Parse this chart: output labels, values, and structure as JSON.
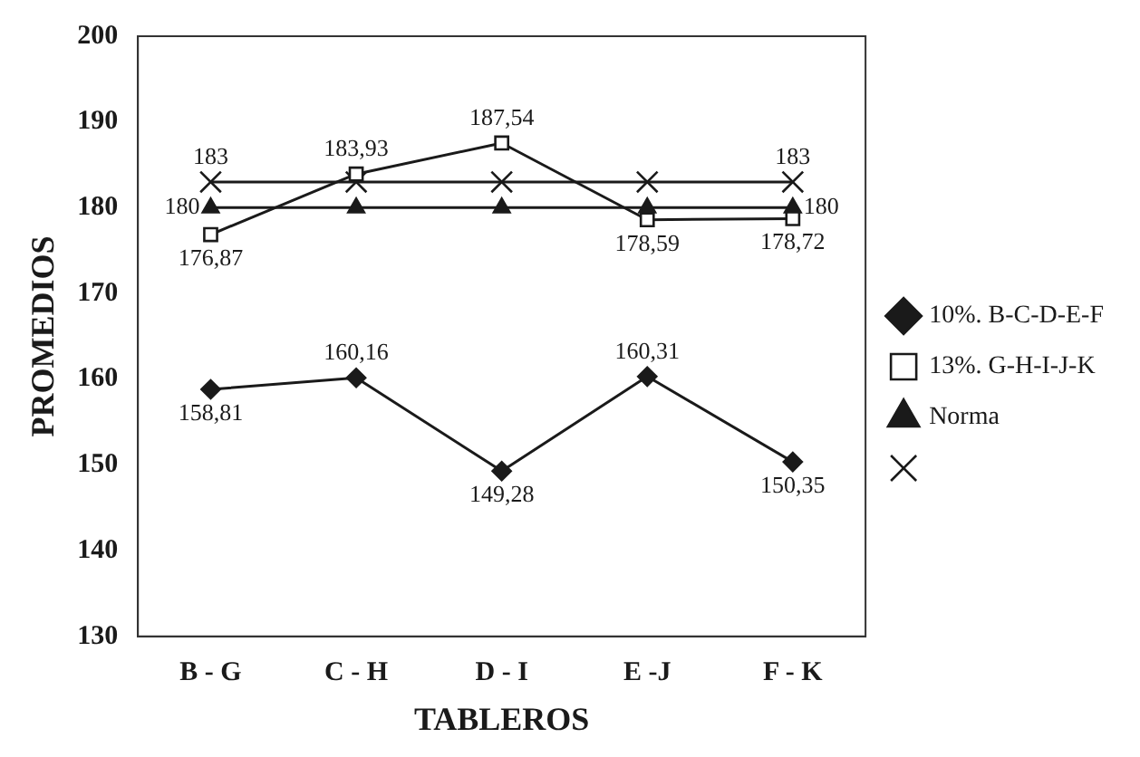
{
  "chart_data": {
    "type": "line",
    "xlabel": "TABLEROS",
    "ylabel": "PROMEDIOS",
    "categories": [
      "B - G",
      "C - H",
      "D - I",
      "E -J",
      "F - K"
    ],
    "ylim": [
      130,
      200
    ],
    "yticks": [
      130,
      140,
      150,
      160,
      170,
      180,
      190,
      200
    ],
    "grid": false,
    "legend": "right",
    "line_style": "solid",
    "series": [
      {
        "name": "10%. B-C-D-E-F",
        "color": "#1a1a1a",
        "marker": "diamond",
        "values": [
          158.81,
          160.16,
          149.28,
          160.31,
          150.35
        ],
        "value_labels": [
          "158,81",
          "160,16",
          "149,28",
          "160,31",
          "150,35"
        ]
      },
      {
        "name": "13%. G-H-I-J-K",
        "color": "#1a1a1a",
        "marker": "square",
        "values": [
          176.87,
          183.93,
          187.54,
          178.59,
          178.72
        ],
        "value_labels": [
          "176,87",
          "183,93",
          "187,54",
          "178,59",
          "178,72"
        ]
      },
      {
        "name": "Norma",
        "color": "#1a1a1a",
        "marker": "triangle",
        "values": [
          180,
          180,
          180,
          180,
          180
        ],
        "value_labels": [
          "180",
          null,
          null,
          null,
          "180"
        ]
      },
      {
        "color": "#1a1a1a",
        "marker": "cross",
        "values": [
          183,
          183,
          183,
          183,
          183
        ],
        "value_labels": [
          "183",
          null,
          null,
          null,
          "183"
        ]
      }
    ]
  }
}
